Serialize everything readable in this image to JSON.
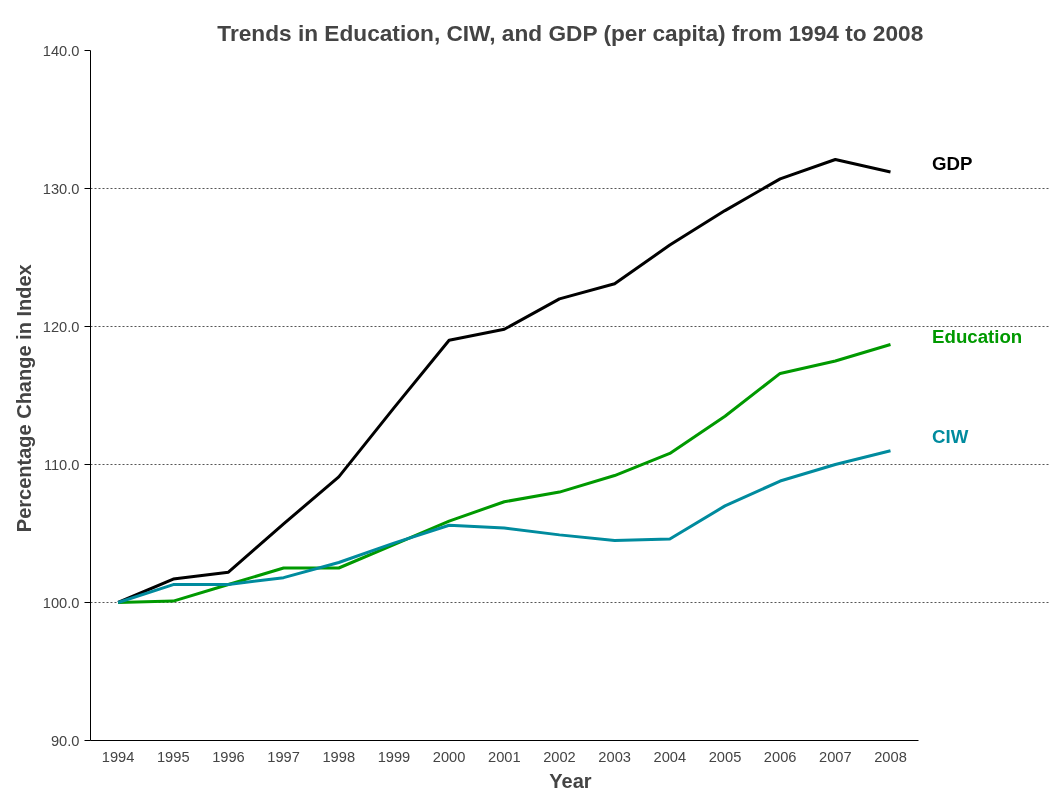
{
  "chart_data": {
    "type": "line",
    "title": "Trends in Education, CIW, and GDP (per capita) from 1994 to 2008",
    "xlabel": "Year",
    "ylabel": "Percentage  Change in Index",
    "categories": [
      "1994",
      "1995",
      "1996",
      "1997",
      "1998",
      "1999",
      "2000",
      "2001",
      "2002",
      "2003",
      "2004",
      "2005",
      "2006",
      "2007",
      "2008"
    ],
    "series": [
      {
        "name": "GDP",
        "color": "#000000",
        "values": [
          100.0,
          101.7,
          102.2,
          105.7,
          109.1,
          114.1,
          119.0,
          119.8,
          122.0,
          123.1,
          125.9,
          128.4,
          130.7,
          132.1,
          131.2
        ]
      },
      {
        "name": "Education",
        "color": "#009900",
        "values": [
          100.0,
          100.1,
          101.3,
          102.5,
          102.5,
          104.2,
          105.9,
          107.3,
          108.0,
          109.2,
          110.8,
          113.5,
          116.6,
          117.5,
          118.7
        ]
      },
      {
        "name": "CIW",
        "color": "#008b9e",
        "values": [
          100.0,
          101.3,
          101.3,
          101.8,
          102.9,
          104.3,
          105.6,
          105.4,
          104.9,
          104.5,
          104.6,
          107.0,
          108.8,
          110.0,
          111.0
        ]
      }
    ],
    "ylim": [
      90,
      140
    ],
    "yticks": [
      {
        "value": 90,
        "label": "90.0"
      },
      {
        "value": 100,
        "label": "100.0"
      },
      {
        "value": 110,
        "label": "110.0"
      },
      {
        "value": 120,
        "label": "120.0"
      },
      {
        "value": 130,
        "label": "130.0"
      },
      {
        "value": 140,
        "label": "140.0"
      }
    ],
    "grid": "y",
    "marker": "none",
    "line_style": "solid"
  }
}
